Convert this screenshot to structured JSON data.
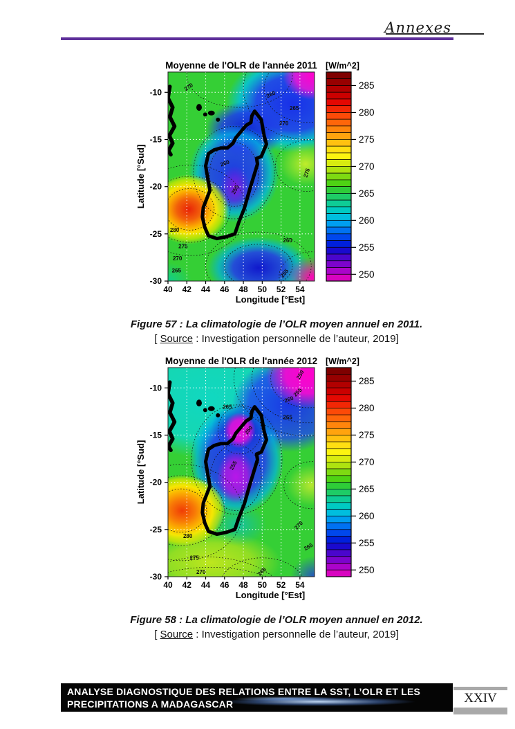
{
  "page": {
    "header": {
      "title": "Annexes",
      "rule_color": "#5e2f9a"
    },
    "figures": [
      {
        "caption": "Figure 57 : La climatologie de l’OLR moyen annuel en 2011.",
        "source_open": "[ ",
        "source_label": "Source",
        "source_rest": " : Investigation personnelle de l’auteur, 2019]"
      },
      {
        "caption": "Figure 58 : La climatologie de l’OLR moyen annuel en 2012.",
        "source_open": "[ ",
        "source_label": "Source",
        "source_rest": " : Investigation personnelle de l’auteur, 2019]"
      }
    ],
    "footer": {
      "line1": "ANALYSE DIAGNOSTIQUE DES RELATIONS ENTRE LA SST, L’OLR ET LES",
      "line2": "PRECIPITATIONS A MADAGASCAR",
      "page_number": "XXIV",
      "bar_color": "#050505"
    }
  },
  "chart_data": [
    {
      "id": "olr-2011",
      "type": "heatmap",
      "title": "Moyenne de l'OLR de l'année 2011",
      "xlabel": "Longitude [°Est]",
      "ylabel": "Latitude [°Sud]",
      "xlim": [
        40,
        55.55
      ],
      "ylim": [
        -30,
        -7.85
      ],
      "x_ticks": [
        40,
        42,
        44,
        46,
        48,
        50,
        52,
        54
      ],
      "y_ticks": [
        -10,
        -15,
        -20,
        -25,
        -30
      ],
      "grid": true,
      "colorbar": {
        "label": "[W/m^2]",
        "ticks": [
          285,
          280,
          275,
          270,
          265,
          260,
          255,
          250
        ],
        "vmin": 248.75,
        "vmax": 287.5,
        "cells": 31
      },
      "base_color": "#35cf35",
      "features": [
        {
          "name": "blue-northeast",
          "lon": 53.2,
          "lat": -11.2,
          "rx": 7.0,
          "ry": 5.2,
          "stops": [
            [
              0,
              "#1830e8",
              1
            ],
            [
              0.55,
              "#1f46ee",
              0.95
            ],
            [
              0.8,
              "#00c0e8",
              0.8
            ],
            [
              1,
              "#00c0e8",
              0
            ]
          ]
        },
        {
          "name": "magenta-ne-corner",
          "lon": 55.4,
          "lat": -8.2,
          "rx": 3.2,
          "ry": 2.6,
          "stops": [
            [
              0,
              "#ff00cc",
              1
            ],
            [
              0.6,
              "#e618d8",
              0.9
            ],
            [
              1,
              "#e618d8",
              0
            ]
          ]
        },
        {
          "name": "darkblue-north-island",
          "lon": 48.2,
          "lat": -14.0,
          "rx": 4.2,
          "ry": 3.0,
          "stops": [
            [
              0,
              "#1024d0",
              1
            ],
            [
              0.6,
              "#1e3ae6",
              0.85
            ],
            [
              1,
              "#1e3ae6",
              0
            ]
          ]
        },
        {
          "name": "blue-central-island",
          "lon": 47.0,
          "lat": -18.6,
          "rx": 4.8,
          "ry": 5.2,
          "stops": [
            [
              0,
              "#1c38e6",
              0.97
            ],
            [
              0.55,
              "#2246ea",
              0.9
            ],
            [
              0.8,
              "#00b4e6",
              0.75
            ],
            [
              1,
              "#00b4e6",
              0
            ]
          ]
        },
        {
          "name": "violet-core",
          "lon": 47.1,
          "lat": -20.1,
          "rx": 1.6,
          "ry": 2.3,
          "stops": [
            [
              0,
              "#8a14e0",
              0.95
            ],
            [
              1,
              "#8a14e0",
              0
            ]
          ]
        },
        {
          "name": "red-hotspot-west",
          "lon": 42.2,
          "lat": -22.4,
          "rx": 4.3,
          "ry": 3.7,
          "stops": [
            [
              0,
              "#e82408",
              1
            ],
            [
              0.3,
              "#f2600a",
              1
            ],
            [
              0.5,
              "#ffa800",
              0.98
            ],
            [
              0.68,
              "#ffe400",
              0.95
            ],
            [
              0.85,
              "#c8e800",
              0.8
            ],
            [
              1,
              "#c8e800",
              0
            ]
          ]
        },
        {
          "name": "blue-south",
          "lon": 49.6,
          "lat": -28.6,
          "rx": 5.4,
          "ry": 3.3,
          "stops": [
            [
              0,
              "#1018cc",
              1
            ],
            [
              0.5,
              "#2240e8",
              0.9
            ],
            [
              0.78,
              "#00b0e0",
              0.7
            ],
            [
              1,
              "#00b0e0",
              0
            ]
          ]
        },
        {
          "name": "magenta-se-corner",
          "lon": 55.3,
          "lat": -29.6,
          "rx": 2.6,
          "ry": 2.2,
          "stops": [
            [
              0,
              "#ff00bb",
              1
            ],
            [
              1,
              "#ff00bb",
              0
            ]
          ]
        },
        {
          "name": "yellowgreen-east",
          "lon": 54.6,
          "lat": -17.6,
          "rx": 2.8,
          "ry": 2.3,
          "stops": [
            [
              0,
              "#c8ee2a",
              0.95
            ],
            [
              1,
              "#c8ee2a",
              0
            ]
          ]
        },
        {
          "name": "cyan-sw-corner",
          "lon": 40.0,
          "lat": -30.0,
          "rx": 2.5,
          "ry": 2.0,
          "stops": [
            [
              0,
              "#00ccb4",
              0.7
            ],
            [
              1,
              "#00ccb4",
              0
            ]
          ]
        }
      ],
      "rings": [
        [
          42.3,
          -22.4,
          2.6,
          2.2
        ],
        [
          42.3,
          -22.4,
          4.3,
          3.5
        ],
        [
          42.4,
          -22.5,
          5.9,
          4.8
        ],
        [
          47.0,
          -18.7,
          2.6,
          3.4
        ],
        [
          47.0,
          -18.5,
          4.3,
          4.9
        ],
        [
          49.6,
          -28.4,
          3.6,
          2.3
        ],
        [
          49.6,
          -28.4,
          5.6,
          3.6
        ],
        [
          54.8,
          -9.6,
          4.6,
          3.6
        ],
        [
          54.8,
          -9.6,
          6.8,
          5.4
        ],
        [
          54.7,
          -17.8,
          3.3,
          2.7
        ],
        [
          47.6,
          -8.2,
          5.6,
          3.4
        ],
        [
          55.2,
          -29.5,
          3.4,
          2.6
        ]
      ],
      "contour_labels": [
        {
          "text": "270",
          "lon": 42.3,
          "lat": -9.6,
          "rot": -35
        },
        {
          "text": "260",
          "lon": 51.0,
          "lat": -10.4,
          "rot": -25
        },
        {
          "text": "265",
          "lon": 53.4,
          "lat": -11.9,
          "rot": 0
        },
        {
          "text": "270",
          "lon": 52.3,
          "lat": -13.5,
          "rot": 0
        },
        {
          "text": "275",
          "lon": 54.9,
          "lat": -18.6,
          "rot": -72
        },
        {
          "text": "260",
          "lon": 46.1,
          "lat": -17.7,
          "rot": -20
        },
        {
          "text": "255",
          "lon": 47.3,
          "lat": -20.4,
          "rot": -62
        },
        {
          "text": "280",
          "lon": 40.7,
          "lat": -24.8,
          "rot": 0
        },
        {
          "text": "275",
          "lon": 41.6,
          "lat": -26.5,
          "rot": 0
        },
        {
          "text": "270",
          "lon": 41.0,
          "lat": -27.8,
          "rot": 0
        },
        {
          "text": "265",
          "lon": 40.9,
          "lat": -29.1,
          "rot": 0
        },
        {
          "text": "260",
          "lon": 52.7,
          "lat": -25.9,
          "rot": 0
        },
        {
          "text": "255",
          "lon": 52.5,
          "lat": -29.3,
          "rot": -50
        }
      ]
    },
    {
      "id": "olr-2012",
      "type": "heatmap",
      "title": "Moyenne de l'OLR de l'année 2012",
      "xlabel": "Longitude [°Est]",
      "ylabel": "Latitude [°Sud]",
      "xlim": [
        40,
        55.55
      ],
      "ylim": [
        -30,
        -7.85
      ],
      "x_ticks": [
        40,
        42,
        44,
        46,
        48,
        50,
        52,
        54
      ],
      "y_ticks": [
        -10,
        -15,
        -20,
        -25,
        -30
      ],
      "grid": true,
      "colorbar": {
        "label": "[W/m^2]",
        "ticks": [
          285,
          280,
          275,
          270,
          265,
          260,
          255,
          250
        ],
        "vmin": 248.75,
        "vmax": 287.5,
        "cells": 31
      },
      "base_color": "#35cf35",
      "features": [
        {
          "name": "cyan-upper",
          "lon": 44.5,
          "lat": -11.0,
          "rx": 10.0,
          "ry": 6.5,
          "stops": [
            [
              0,
              "#0fd8c8",
              0.95
            ],
            [
              0.7,
              "#0fd8c8",
              0.85
            ],
            [
              1,
              "#0fd8c8",
              0
            ]
          ]
        },
        {
          "name": "blue-ne",
          "lon": 52.8,
          "lat": -11.8,
          "rx": 6.0,
          "ry": 5.0,
          "stops": [
            [
              0,
              "#1830e8",
              0.95
            ],
            [
              0.7,
              "#1f46ee",
              0.8
            ],
            [
              1,
              "#1f46ee",
              0
            ]
          ]
        },
        {
          "name": "magenta-ne-corner",
          "lon": 55.0,
          "lat": -8.6,
          "rx": 4.6,
          "ry": 3.6,
          "stops": [
            [
              0,
              "#ff00cc",
              1
            ],
            [
              0.55,
              "#f00cd2",
              0.95
            ],
            [
              1,
              "#f00cd2",
              0
            ]
          ]
        },
        {
          "name": "blue-island",
          "lon": 47.3,
          "lat": -17.6,
          "rx": 5.0,
          "ry": 5.8,
          "stops": [
            [
              0,
              "#1c34e6",
              0.97
            ],
            [
              0.6,
              "#2244ea",
              0.9
            ],
            [
              0.85,
              "#00b0e6",
              0.7
            ],
            [
              1,
              "#00b0e6",
              0
            ]
          ]
        },
        {
          "name": "darkblue-north",
          "lon": 48.0,
          "lat": -14.2,
          "rx": 3.4,
          "ry": 2.6,
          "stops": [
            [
              0,
              "#1020cc",
              0.95
            ],
            [
              1,
              "#1020cc",
              0
            ]
          ]
        },
        {
          "name": "magenta-north-core",
          "lon": 47.6,
          "lat": -14.5,
          "rx": 1.7,
          "ry": 1.9,
          "stops": [
            [
              0,
              "#ea10dc",
              1
            ],
            [
              0.6,
              "#ea10dc",
              0.85
            ],
            [
              1,
              "#ea10dc",
              0
            ]
          ]
        },
        {
          "name": "violet-center-core",
          "lon": 47.2,
          "lat": -19.4,
          "rx": 2.0,
          "ry": 2.8,
          "stops": [
            [
              0,
              "#c014ea",
              0.95
            ],
            [
              0.6,
              "#b018e0",
              0.8
            ],
            [
              1,
              "#b018e0",
              0
            ]
          ]
        },
        {
          "name": "red-hotspot-west",
          "lon": 41.5,
          "lat": -23.0,
          "rx": 4.6,
          "ry": 3.8,
          "stops": [
            [
              0,
              "#f03c06",
              1
            ],
            [
              0.3,
              "#f87a06",
              1
            ],
            [
              0.52,
              "#ffb400",
              0.98
            ],
            [
              0.7,
              "#ffe800",
              0.95
            ],
            [
              0.88,
              "#cce400",
              0.8
            ],
            [
              1,
              "#cce400",
              0
            ]
          ]
        },
        {
          "name": "yellow-south-band",
          "lon": 44.5,
          "lat": -28.5,
          "rx": 7.5,
          "ry": 3.4,
          "stops": [
            [
              0,
              "#e0ec18",
              0.8
            ],
            [
              0.6,
              "#cfe818",
              0.6
            ],
            [
              1,
              "#cfe818",
              0
            ]
          ]
        },
        {
          "name": "cyan-south-island",
          "lon": 47.5,
          "lat": -24.5,
          "rx": 3.0,
          "ry": 2.2,
          "stops": [
            [
              0,
              "#00b8e0",
              0.6
            ],
            [
              1,
              "#00b8e0",
              0
            ]
          ]
        },
        {
          "name": "yellowgreen-east",
          "lon": 55.2,
          "lat": -20.3,
          "rx": 2.6,
          "ry": 2.2,
          "stops": [
            [
              0,
              "#c4ea2e",
              0.9
            ],
            [
              1,
              "#c4ea2e",
              0
            ]
          ]
        },
        {
          "name": "blue-se-corner",
          "lon": 55.6,
          "lat": -30.0,
          "rx": 2.6,
          "ry": 2.2,
          "stops": [
            [
              0,
              "#2238dd",
              0.85
            ],
            [
              1,
              "#2238dd",
              0
            ]
          ]
        }
      ],
      "rings": [
        [
          41.4,
          -23.0,
          2.7,
          2.3
        ],
        [
          41.4,
          -23.0,
          4.6,
          3.7
        ],
        [
          41.5,
          -23.2,
          6.4,
          5.1
        ],
        [
          47.6,
          -14.5,
          2.3,
          2.5
        ],
        [
          47.2,
          -19.5,
          2.7,
          3.5
        ],
        [
          47.3,
          -17.6,
          4.8,
          5.8
        ],
        [
          54.9,
          -9.0,
          4.0,
          3.1
        ],
        [
          54.9,
          -9.0,
          6.0,
          4.7
        ],
        [
          54.9,
          -9.0,
          7.9,
          6.1
        ],
        [
          44.0,
          -32.5,
          8.5,
          4.6
        ],
        [
          44.5,
          -34.0,
          10,
          5
        ],
        [
          55.3,
          -20.3,
          3.0,
          2.5
        ],
        [
          50.0,
          -31.0,
          4.5,
          3.0
        ]
      ],
      "contour_labels": [
        {
          "text": "265",
          "lon": 46.3,
          "lat": -12.2,
          "rot": 0
        },
        {
          "text": "250",
          "lon": 54.2,
          "lat": -8.7,
          "rot": -60
        },
        {
          "text": "255",
          "lon": 53.9,
          "lat": -10.6,
          "rot": -45
        },
        {
          "text": "260",
          "lon": 52.9,
          "lat": -11.4,
          "rot": -20
        },
        {
          "text": "265",
          "lon": 52.7,
          "lat": -13.3,
          "rot": 0
        },
        {
          "text": "250",
          "lon": 48.7,
          "lat": -14.6,
          "rot": -50
        },
        {
          "text": "255",
          "lon": 47.1,
          "lat": -18.3,
          "rot": -62
        },
        {
          "text": "270",
          "lon": 54.0,
          "lat": -24.7,
          "rot": -45
        },
        {
          "text": "265",
          "lon": 55.0,
          "lat": -27.0,
          "rot": -30
        },
        {
          "text": "280",
          "lon": 42.1,
          "lat": -25.9,
          "rot": 0
        },
        {
          "text": "275",
          "lon": 42.8,
          "lat": -28.2,
          "rot": 0
        },
        {
          "text": "270",
          "lon": 43.5,
          "lat": -29.7,
          "rot": 0
        },
        {
          "text": "265",
          "lon": 50.1,
          "lat": -29.6,
          "rot": -45
        }
      ]
    }
  ]
}
